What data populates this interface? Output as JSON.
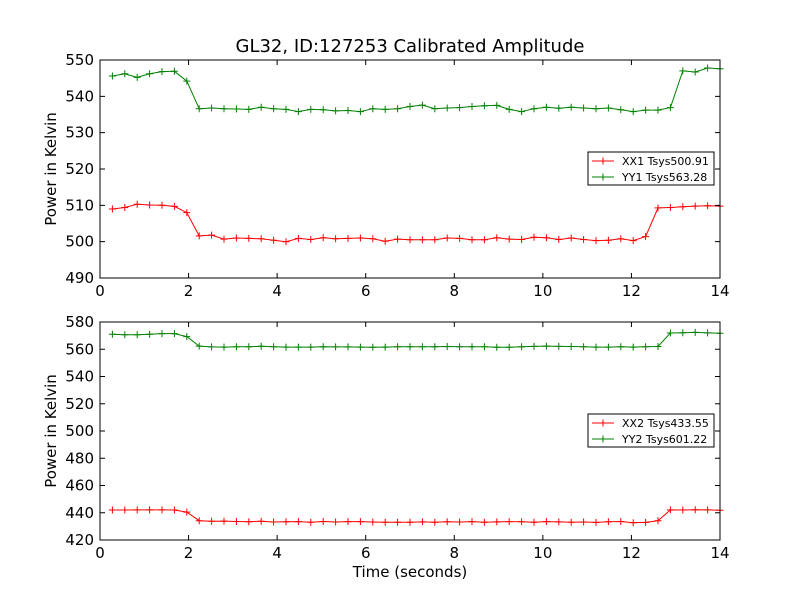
{
  "figure": {
    "title": "GL32, ID:127253 Calibrated Amplitude"
  },
  "chart_data": [
    {
      "type": "line",
      "title": "GL32, ID:127253 Calibrated Amplitude",
      "xlabel": "",
      "ylabel": "Power in Kelvin",
      "xlim": [
        0,
        14
      ],
      "ylim": [
        490,
        550
      ],
      "xticks": [
        "0",
        "2",
        "4",
        "6",
        "8",
        "10",
        "12",
        "14"
      ],
      "yticks": [
        "490",
        "500",
        "510",
        "520",
        "530",
        "540",
        "550"
      ],
      "grid": false,
      "legend_position": "right",
      "x": [
        0.28,
        0.56,
        0.84,
        1.12,
        1.4,
        1.68,
        1.96,
        2.24,
        2.52,
        2.8,
        3.08,
        3.36,
        3.64,
        3.92,
        4.2,
        4.48,
        4.76,
        5.04,
        5.32,
        5.6,
        5.88,
        6.16,
        6.44,
        6.72,
        7.0,
        7.28,
        7.56,
        7.84,
        8.12,
        8.4,
        8.68,
        8.96,
        9.24,
        9.52,
        9.8,
        10.08,
        10.36,
        10.64,
        10.92,
        11.2,
        11.48,
        11.76,
        12.04,
        12.32,
        12.6,
        12.88,
        13.16,
        13.44,
        13.72,
        14.0
      ],
      "series": [
        {
          "name": "XX1 Tsys500.91",
          "color": "#ff0000",
          "values": [
            509.0,
            509.4,
            510.3,
            510.1,
            510.0,
            509.7,
            508.0,
            501.6,
            501.8,
            500.7,
            501.0,
            500.9,
            500.8,
            500.4,
            500.0,
            500.9,
            500.6,
            501.1,
            500.8,
            500.9,
            501.0,
            500.8,
            500.1,
            500.7,
            500.5,
            500.5,
            500.5,
            501.0,
            500.9,
            500.5,
            500.5,
            501.1,
            500.7,
            500.6,
            501.2,
            501.1,
            500.6,
            501.0,
            500.6,
            500.3,
            500.4,
            500.8,
            500.3,
            501.4,
            509.3,
            509.4,
            509.6,
            509.8,
            509.9,
            509.8
          ]
        },
        {
          "name": "YY1 Tsys563.28",
          "color": "#008000",
          "values": [
            545.6,
            546.2,
            545.2,
            546.2,
            546.8,
            546.9,
            544.2,
            536.6,
            536.8,
            536.6,
            536.5,
            536.4,
            537.0,
            536.6,
            536.4,
            535.8,
            536.4,
            536.3,
            536.0,
            536.1,
            535.8,
            536.6,
            536.4,
            536.6,
            537.2,
            537.6,
            536.6,
            536.8,
            536.9,
            537.2,
            537.4,
            537.5,
            536.4,
            535.8,
            536.6,
            537.0,
            536.7,
            537.0,
            536.8,
            536.6,
            536.8,
            536.3,
            535.8,
            536.2,
            536.2,
            536.9,
            547.0,
            546.7,
            547.8,
            547.6
          ]
        }
      ]
    },
    {
      "type": "line",
      "title": "",
      "xlabel": "Time (seconds)",
      "ylabel": "Power in Kelvin",
      "xlim": [
        0,
        14
      ],
      "ylim": [
        420,
        580
      ],
      "xticks": [
        "0",
        "2",
        "4",
        "6",
        "8",
        "10",
        "12",
        "14"
      ],
      "yticks": [
        "420",
        "440",
        "460",
        "480",
        "500",
        "520",
        "540",
        "560",
        "580"
      ],
      "grid": false,
      "legend_position": "right",
      "x": [
        0.28,
        0.56,
        0.84,
        1.12,
        1.4,
        1.68,
        1.96,
        2.24,
        2.52,
        2.8,
        3.08,
        3.36,
        3.64,
        3.92,
        4.2,
        4.48,
        4.76,
        5.04,
        5.32,
        5.6,
        5.88,
        6.16,
        6.44,
        6.72,
        7.0,
        7.28,
        7.56,
        7.84,
        8.12,
        8.4,
        8.68,
        8.96,
        9.24,
        9.52,
        9.8,
        10.08,
        10.36,
        10.64,
        10.92,
        11.2,
        11.48,
        11.76,
        12.04,
        12.32,
        12.6,
        12.88,
        13.16,
        13.44,
        13.72,
        14.0
      ],
      "series": [
        {
          "name": "XX2 Tsys433.55",
          "color": "#ff0000",
          "values": [
            442.0,
            442.0,
            442.1,
            442.1,
            442.1,
            442.0,
            440.5,
            434.2,
            433.8,
            433.9,
            433.6,
            433.4,
            433.7,
            433.2,
            433.4,
            433.5,
            433.1,
            433.6,
            433.2,
            433.5,
            433.5,
            433.2,
            433.0,
            433.1,
            433.1,
            433.3,
            433.0,
            433.4,
            433.2,
            433.5,
            433.1,
            433.3,
            433.5,
            433.4,
            433.1,
            433.5,
            433.3,
            433.1,
            433.2,
            432.9,
            433.4,
            433.6,
            432.7,
            432.9,
            434.1,
            442.1,
            442.0,
            442.2,
            442.1,
            441.9
          ]
        },
        {
          "name": "YY2 Tsys601.22",
          "color": "#008000",
          "values": [
            571.0,
            570.7,
            570.6,
            571.0,
            571.5,
            571.5,
            569.3,
            562.3,
            561.7,
            561.6,
            561.8,
            561.8,
            562.2,
            561.8,
            561.6,
            561.6,
            561.6,
            561.8,
            561.7,
            561.7,
            561.6,
            561.5,
            561.6,
            561.8,
            561.8,
            561.9,
            561.8,
            562.0,
            561.9,
            561.8,
            561.9,
            561.5,
            561.4,
            561.8,
            562.1,
            562.3,
            562.1,
            562.0,
            561.8,
            561.6,
            561.6,
            561.8,
            561.6,
            561.8,
            562.0,
            571.9,
            572.1,
            572.4,
            572.0,
            571.8
          ]
        }
      ]
    }
  ]
}
